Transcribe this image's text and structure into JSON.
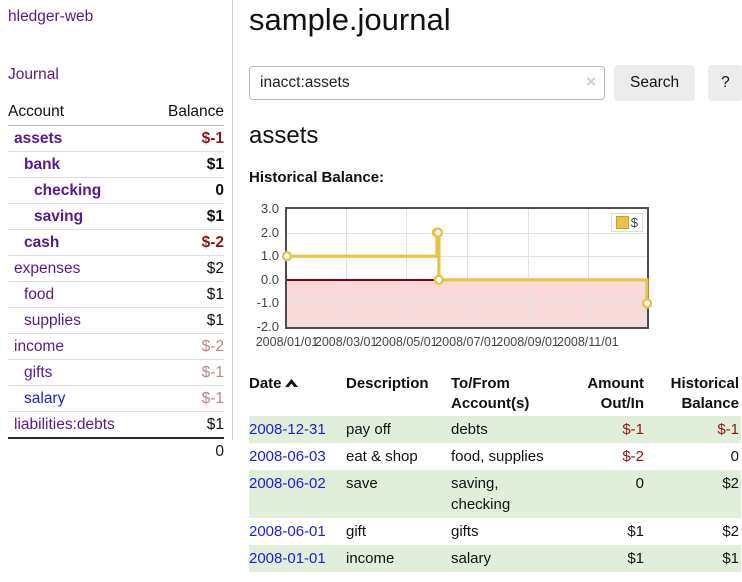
{
  "app": {
    "brand": "hledger-web",
    "nav": {
      "journal": "Journal"
    }
  },
  "colors": {
    "accent_purple": "#551a8b",
    "link_blue": "#1c1cd9",
    "negative_red": "#8f1515",
    "muted_negative_red": "#bd8585",
    "row_highlight_green": "#e1efda",
    "chart_line_gold": "#e9c248",
    "negative_region_pink": "#f9dada",
    "zero_line_red": "#8b0000"
  },
  "sidebar": {
    "accounts_table": {
      "headers": {
        "account": "Account",
        "balance": "Balance"
      },
      "rows": [
        {
          "label": "assets",
          "balance": "$-1",
          "indent": 1,
          "bold": true
        },
        {
          "label": "bank",
          "balance": "$1",
          "indent": 2,
          "bold": true
        },
        {
          "label": "checking",
          "balance": "0",
          "indent": 3,
          "bold": true
        },
        {
          "label": "saving",
          "balance": "$1",
          "indent": 3,
          "bold": true
        },
        {
          "label": "cash",
          "balance": "$-2",
          "indent": 2,
          "bold": true
        },
        {
          "label": "expenses",
          "balance": "$2",
          "indent": 1,
          "bold": false
        },
        {
          "label": "food",
          "balance": "$1",
          "indent": 2,
          "bold": false
        },
        {
          "label": "supplies",
          "balance": "$1",
          "indent": 2,
          "bold": false
        },
        {
          "label": "income",
          "balance": "$-2",
          "indent": 1,
          "bold": false
        },
        {
          "label": "gifts",
          "balance": "$-1",
          "indent": 2,
          "bold": false
        },
        {
          "label": "salary",
          "balance": "$-1",
          "indent": 2,
          "bold": false,
          "fresh": true
        },
        {
          "label": "liabilities:debts",
          "balance": "$1",
          "indent": 1,
          "bold": false
        }
      ],
      "total": "0"
    }
  },
  "main": {
    "title": "sample.journal",
    "search": {
      "value": "inacct:assets",
      "clear_icon": "×",
      "search_button": "Search",
      "help_button": "?"
    },
    "account_heading": "assets",
    "chart_heading": "Historical Balance:"
  },
  "chart_data": {
    "type": "line",
    "step": true,
    "title": "Historical Balance",
    "series": [
      {
        "name": "$",
        "color": "#e9c248",
        "points": [
          [
            "2008-01-01",
            1
          ],
          [
            "2008-06-01",
            2
          ],
          [
            "2008-06-02",
            2
          ],
          [
            "2008-06-03",
            0
          ],
          [
            "2008-12-31",
            -1
          ]
        ]
      }
    ],
    "xrange": [
      "2008-01-01",
      "2008-12-31"
    ],
    "ylim": [
      -2,
      3
    ],
    "yticks": [
      {
        "v": 3,
        "label": "3.0"
      },
      {
        "v": 2,
        "label": "2.0"
      },
      {
        "v": 1,
        "label": "1.0"
      },
      {
        "v": 0,
        "label": "0.0"
      },
      {
        "v": -1,
        "label": "-1.0"
      },
      {
        "v": -2,
        "label": "-2.0"
      }
    ],
    "xticks": [
      {
        "date": "2008-01-01",
        "label": "2008/01/01"
      },
      {
        "date": "2008-03-01",
        "label": "2008/03/01"
      },
      {
        "date": "2008-05-01",
        "label": "2008/05/01"
      },
      {
        "date": "2008-07-01",
        "label": "2008/07/01"
      },
      {
        "date": "2008-09-01",
        "label": "2008/09/01"
      },
      {
        "date": "2008-11-01",
        "label": "2008/11/01"
      }
    ],
    "grid": true,
    "legend_position": "top-right",
    "negative_region_fill": "#f9dada",
    "zero_line_color": "#8b0000"
  },
  "register": {
    "headers": {
      "date": "Date",
      "description": "Description",
      "accounts": "To/From Account(s)",
      "amount": "Amount Out/In",
      "balance": "Historical Balance"
    },
    "rows": [
      {
        "date": "2008-12-31",
        "description": "pay off",
        "accounts": "debts",
        "amount": "$-1",
        "balance": "$-1"
      },
      {
        "date": "2008-06-03",
        "description": "eat & shop",
        "accounts": "food, supplies",
        "amount": "$-2",
        "balance": "0"
      },
      {
        "date": "2008-06-02",
        "description": "save",
        "accounts": "saving, checking",
        "amount": "0",
        "balance": "$2"
      },
      {
        "date": "2008-06-01",
        "description": "gift",
        "accounts": "gifts",
        "amount": "$1",
        "balance": "$2"
      },
      {
        "date": "2008-01-01",
        "description": "income",
        "accounts": "salary",
        "amount": "$1",
        "balance": "$1"
      }
    ]
  }
}
